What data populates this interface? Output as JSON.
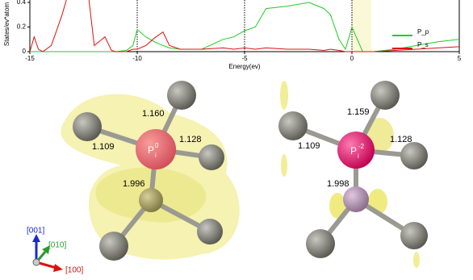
{
  "chart_data": {
    "type": "line",
    "x_label": "Energy(ev)",
    "y_label": "States/ev*atom",
    "x": [
      -15,
      -14.8,
      -14.6,
      -14.4,
      -14,
      -13.5,
      -13,
      -12.6,
      -12.3,
      -12,
      -11.5,
      -11.2,
      -11,
      -10.5,
      -10.2,
      -10,
      -9.6,
      -9.2,
      -8.8,
      -8.5,
      -8,
      -7,
      -6,
      -5.5,
      -5,
      -4.5,
      -4,
      -3,
      -2,
      -1.3,
      -1,
      -0.6,
      -0.3,
      0,
      0.5,
      1,
      2,
      3,
      4,
      5
    ],
    "series": [
      {
        "name": "P_p",
        "color": "#22cc22",
        "values": [
          0,
          0,
          0,
          0,
          0,
          0,
          0,
          0,
          0,
          0,
          0,
          0,
          0,
          0.01,
          0.05,
          0.18,
          0.12,
          0.08,
          0.05,
          0.03,
          0.02,
          0.02,
          0.1,
          0.12,
          0.17,
          0.2,
          0.35,
          0.37,
          0.4,
          0.35,
          0.3,
          0.1,
          0.02,
          0.2,
          0,
          0,
          0.02,
          0.05,
          0.08,
          0.1
        ]
      },
      {
        "name": "P_s",
        "color": "#dd1111",
        "values": [
          0,
          0.12,
          0.02,
          0,
          0.05,
          0.3,
          0.6,
          0.7,
          0.5,
          0.05,
          0.12,
          0.01,
          0,
          0,
          0.02,
          0.02,
          0.05,
          0.11,
          0.16,
          0.05,
          0.02,
          0.02,
          0.03,
          0.02,
          0.03,
          0.02,
          0.03,
          0.02,
          0.02,
          0.01,
          0.02,
          0.01,
          0,
          0,
          0,
          0,
          0.01,
          0.02,
          0.03,
          0.04
        ]
      }
    ],
    "xlim": [
      -15,
      5
    ],
    "xticks": [
      -15,
      -10,
      -5,
      0,
      5
    ],
    "ylim": [
      0,
      0.4
    ],
    "yticks": [
      0,
      0.2,
      0.4
    ],
    "legend": "upper-right"
  },
  "structures": [
    {
      "atom": "P",
      "sub": "i",
      "sup": "0",
      "bonds": [
        "1.160",
        "1.128",
        "1.109",
        "1.996"
      ]
    },
    {
      "atom": "P",
      "sub": "i",
      "sup": "-2",
      "bonds": [
        "1.159",
        "1.128",
        "1.109",
        "1.998"
      ]
    }
  ],
  "axes": [
    "[001]",
    "[010]",
    "[100]"
  ]
}
